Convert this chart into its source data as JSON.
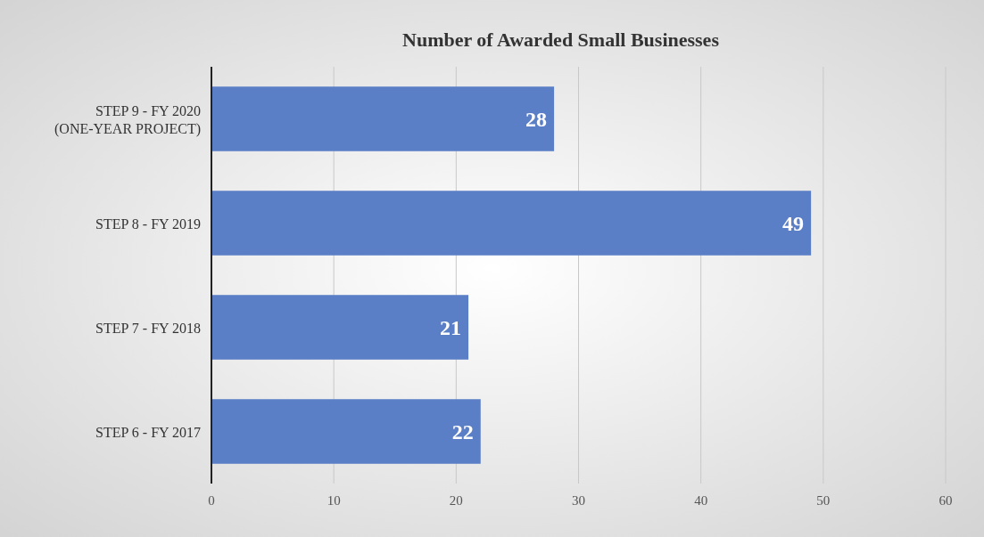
{
  "chart_data": {
    "type": "bar",
    "orientation": "horizontal",
    "title": "Number of Awarded Small Businesses",
    "categories": [
      "STEP 9 - FY 2020\n(ONE-YEAR PROJECT)",
      "STEP 8 - FY 2019",
      "STEP 7 - FY 2018",
      "STEP 6 - FY 2017"
    ],
    "values": [
      28,
      49,
      21,
      22
    ],
    "color": "#5b7fc6",
    "xlim": [
      0,
      60
    ],
    "xticks": [
      0,
      10,
      20,
      30,
      40,
      50,
      60
    ],
    "grid": "x",
    "data_labels": true
  }
}
